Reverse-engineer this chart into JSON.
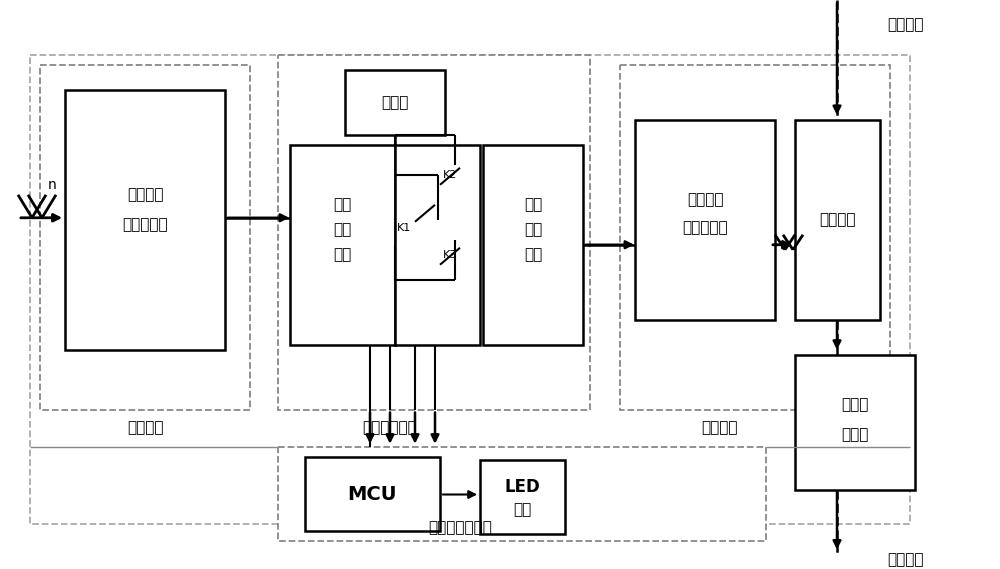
{
  "fig_w": 10.0,
  "fig_h": 5.69,
  "dpi": 100,
  "bg": "#ffffff",
  "texts": {
    "han_kong_qi": "含尘空气",
    "qing_jie": "清洁空气",
    "fa_dian": "发电单元",
    "neng_liang": "能量控制单元",
    "dian_dong_unit": "电动单元",
    "jian_ce": "检测、指示单元",
    "wai_zhuan": "外转子式",
    "yong_ci_fa": "永磁发电机",
    "xu_dian_chi": "蓄电池",
    "ke_kong1": "可控",
    "ke_kong2": "型整",
    "ke_kong3": "流器",
    "dian_dong1": "电动",
    "dian_dong2": "机驱",
    "dian_dong3": "动器",
    "yong_ci1": "永磁无刷",
    "yong_ci2": "直流电动机",
    "xi_chen": "吸尘风机",
    "guo_lv1": "过滤器",
    "guo_lv2": "储尘盒",
    "mcu": "MCU",
    "led": "LED",
    "led2": "指示",
    "k1": "K1",
    "k2": "K2",
    "k3": "K3",
    "n": "n"
  }
}
